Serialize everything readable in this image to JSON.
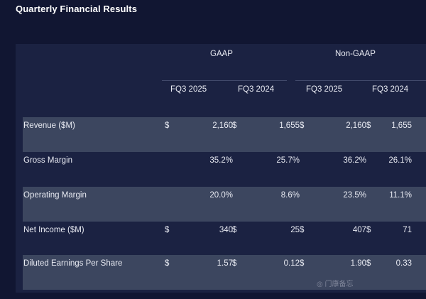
{
  "title": "Quarterly Financial Results",
  "groups": {
    "gaap": "GAAP",
    "non_gaap": "Non-GAAP"
  },
  "columns": [
    "FQ3 2025",
    "FQ3 2024",
    "FQ3 2025",
    "FQ3 2024"
  ],
  "rows": [
    {
      "label": "Revenue ($M)",
      "dollars": [
        "$",
        "$",
        "$",
        "$"
      ],
      "values": [
        "2,160",
        "1,655",
        "2,160",
        "1,655"
      ]
    },
    {
      "label": "Gross Margin",
      "dollars": [
        "",
        "",
        "",
        ""
      ],
      "values": [
        "35.2%",
        "25.7%",
        "36.2%",
        "26.1%"
      ]
    },
    {
      "label": "Operating Margin",
      "dollars": [
        "",
        "",
        "",
        ""
      ],
      "values": [
        "20.0%",
        "8.6%",
        "23.5%",
        "11.1%"
      ]
    },
    {
      "label": "Net Income ($M)",
      "dollars": [
        "$",
        "$",
        "$",
        "$"
      ],
      "values": [
        "340",
        "25",
        "407",
        "71"
      ]
    },
    {
      "label": "Diluted Earnings Per Share",
      "dollars": [
        "$",
        "$",
        "$",
        "$"
      ],
      "values": [
        "1.57",
        "0.12",
        "1.90",
        "0.33"
      ]
    }
  ],
  "watermark": "◎ 门康备忘"
}
